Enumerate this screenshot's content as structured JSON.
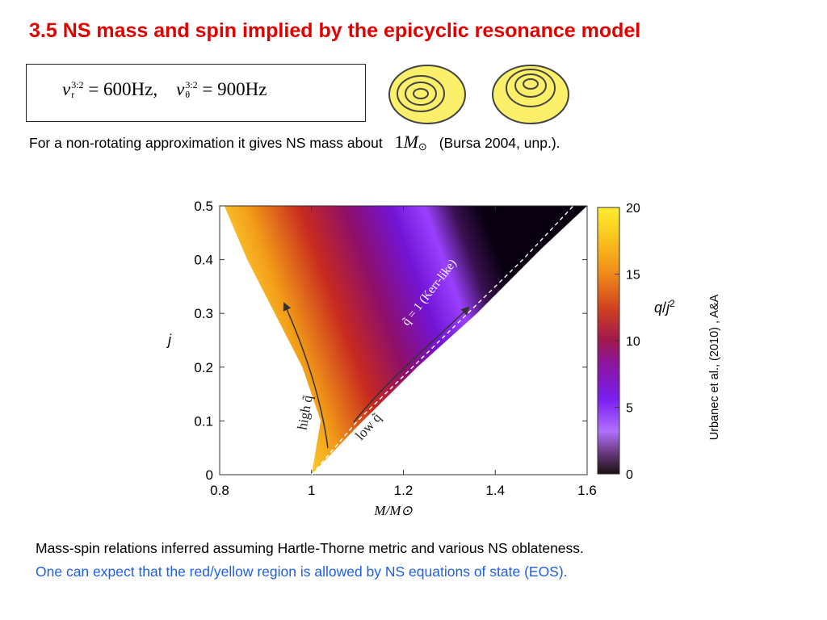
{
  "slide": {
    "title": "3.5 NS mass and spin implied by the epicyclic resonance model",
    "formula": {
      "nu_r_label": "ν",
      "nu_r_sup": "3:2",
      "nu_r_sub": "r",
      "nu_r_value": "= 600Hz,",
      "nu_theta_label": "ν",
      "nu_theta_sup": "3:2",
      "nu_theta_sub": "θ",
      "nu_theta_value": "= 900Hz"
    },
    "intro_text": "For a non-rotating approximation it gives NS mass about",
    "intro_mass": "1",
    "intro_mass_symbol": "M",
    "intro_sun": "⊙",
    "intro_ref": "(Bursa 2004, unp.).",
    "credit": "Urbanec et al., (2010) , A&A",
    "caption_line1": "Mass-spin relations inferred assuming Hartle-Thorne metric and various NS oblateness.",
    "caption_line2": "One can expect that the red/yellow region is allowed by NS equations of state (EOS).",
    "colors": {
      "title": "#e00000",
      "caption_blue": "#1d5fe0",
      "disc_fill": "#fcef6a"
    }
  },
  "chart_data": {
    "type": "heatmap",
    "xlabel": "M/M⊙",
    "ylabel": "j",
    "xlim": [
      0.8,
      1.6
    ],
    "ylim": [
      0,
      0.5
    ],
    "x_ticks": [
      "0.8",
      "1",
      "1.2",
      "1.4",
      "1.6"
    ],
    "y_ticks": [
      "0",
      "0.1",
      "0.2",
      "0.3",
      "0.4",
      "0.5"
    ],
    "colorbar": {
      "label": "q/j²",
      "label_q": "q",
      "label_sep": "/",
      "label_j": "j",
      "label_exp": "2",
      "range": [
        0,
        20
      ],
      "ticks": [
        "0",
        "5",
        "10",
        "15",
        "20"
      ]
    },
    "annotations": {
      "kerr_line": "q̃ = 1 (Kerr-like)",
      "high_q": "high q̃",
      "low_q": "low q̃"
    },
    "region_boundaries": {
      "upper_left_edge": [
        [
          1.0,
          0.0
        ],
        [
          1.02,
          0.1
        ],
        [
          0.98,
          0.2
        ],
        [
          0.92,
          0.3
        ],
        [
          0.86,
          0.4
        ],
        [
          0.81,
          0.5
        ]
      ],
      "kerr_line": [
        [
          1.0,
          0.0
        ],
        [
          1.1,
          0.1
        ],
        [
          1.22,
          0.2
        ],
        [
          1.34,
          0.3
        ],
        [
          1.46,
          0.4
        ],
        [
          1.57,
          0.5
        ]
      ],
      "lower_right_edge": [
        [
          1.0,
          0.0
        ],
        [
          1.1,
          0.09
        ],
        [
          1.23,
          0.2
        ],
        [
          1.36,
          0.3
        ],
        [
          1.5,
          0.42
        ],
        [
          1.6,
          0.5
        ]
      ]
    }
  }
}
